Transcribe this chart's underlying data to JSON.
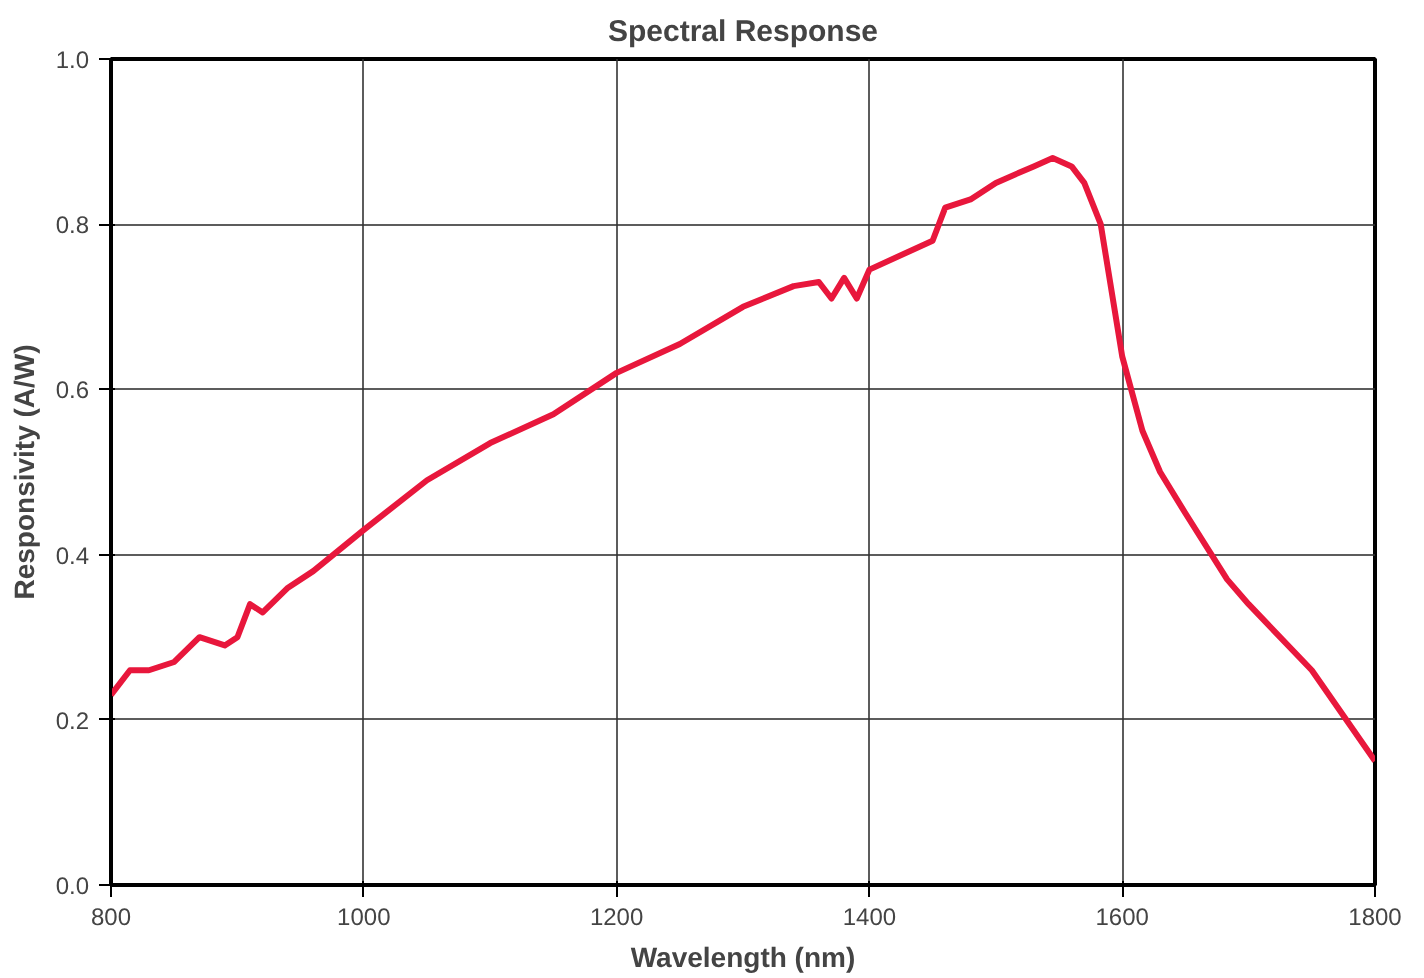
{
  "chart_data": {
    "type": "line",
    "title": "Spectral Response",
    "xlabel": "Wavelength (nm)",
    "ylabel": "Responsivity (A/W)",
    "x": [
      800,
      815,
      830,
      850,
      870,
      890,
      900,
      910,
      920,
      940,
      960,
      1000,
      1050,
      1100,
      1150,
      1200,
      1250,
      1300,
      1340,
      1360,
      1370,
      1380,
      1390,
      1400,
      1450,
      1460,
      1480,
      1500,
      1530,
      1545,
      1560,
      1570,
      1583,
      1600,
      1616,
      1630,
      1650,
      1683,
      1700,
      1750,
      1800
    ],
    "series": [
      {
        "color": "#e8173c",
        "values": [
          0.23,
          0.26,
          0.26,
          0.27,
          0.3,
          0.29,
          0.3,
          0.34,
          0.33,
          0.36,
          0.38,
          0.43,
          0.49,
          0.535,
          0.57,
          0.62,
          0.655,
          0.7,
          0.725,
          0.73,
          0.71,
          0.735,
          0.71,
          0.745,
          0.78,
          0.82,
          0.83,
          0.85,
          0.87,
          0.88,
          0.87,
          0.85,
          0.8,
          0.64,
          0.55,
          0.5,
          0.45,
          0.37,
          0.34,
          0.26,
          0.15
        ]
      }
    ],
    "xlim": [
      800,
      1800
    ],
    "ylim": [
      0,
      1
    ],
    "xticks": [
      800,
      1000,
      1200,
      1400,
      1600,
      1800
    ],
    "yticks": [
      {
        "value": 0,
        "label": "0.0"
      },
      {
        "value": 0.2,
        "label": "0.2"
      },
      {
        "value": 0.4,
        "label": "0.4"
      },
      {
        "value": 0.6,
        "label": "0.6"
      },
      {
        "value": 0.8,
        "label": "0.8"
      },
      {
        "value": 1,
        "label": "1.0"
      }
    ],
    "grid": true,
    "marker": "none",
    "line_style": "solid"
  }
}
